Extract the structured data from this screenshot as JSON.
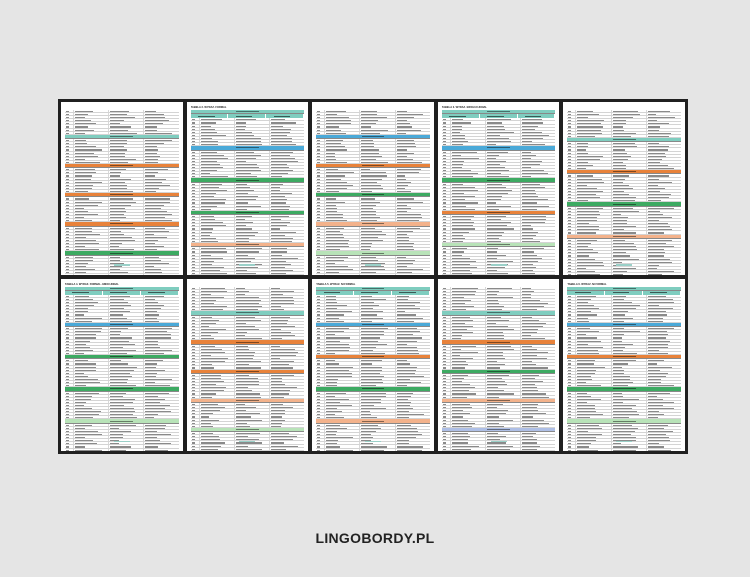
{
  "brand": {
    "label": "LINGOBORDY.PL"
  },
  "colors": {
    "teal": "#7fcdbf",
    "blue": "#4aa9d8",
    "orange": "#e8823a",
    "green": "#3daa62",
    "peach": "#f3b28b",
    "lightgreen": "#b8e3b8",
    "lavender": "#aebfe6"
  },
  "pages": [
    {
      "title": "",
      "header": false,
      "bands": [
        "teal",
        "orange",
        "orange",
        "orange",
        "green"
      ]
    },
    {
      "title": "TABELA 2. WYRAZ. FORMAL",
      "header": true,
      "bands": [
        "blue",
        "green",
        "green",
        "peach"
      ]
    },
    {
      "title": "",
      "header": false,
      "bands": [
        "blue",
        "orange",
        "green",
        "peach",
        "lightgreen"
      ]
    },
    {
      "title": "TABELA 3. WYRAZ. EWOLUCJONAL",
      "header": true,
      "bands": [
        "blue",
        "green",
        "orange",
        "lightgreen"
      ]
    },
    {
      "title": "",
      "header": false,
      "bands": [
        "teal",
        "orange",
        "green",
        "peach"
      ]
    },
    {
      "title": "TABELA 4. WYRAZ. FORMAL. EMOCJONAL",
      "header": true,
      "bands": [
        "blue",
        "green",
        "green",
        "lightgreen"
      ]
    },
    {
      "title": "",
      "header": false,
      "bands": [
        "teal",
        "orange",
        "orange",
        "peach",
        "lightgreen"
      ]
    },
    {
      "title": "TABELA 5. WYRAZ. NI FORMAL",
      "header": true,
      "bands": [
        "blue",
        "orange",
        "green",
        "peach"
      ]
    },
    {
      "title": "",
      "header": false,
      "bands": [
        "teal",
        "orange",
        "green",
        "peach",
        "lavender"
      ]
    },
    {
      "title": "TABELA 6. WYRAZ. NI FORMAL",
      "header": true,
      "bands": [
        "blue",
        "orange",
        "green",
        "lightgreen"
      ]
    }
  ]
}
